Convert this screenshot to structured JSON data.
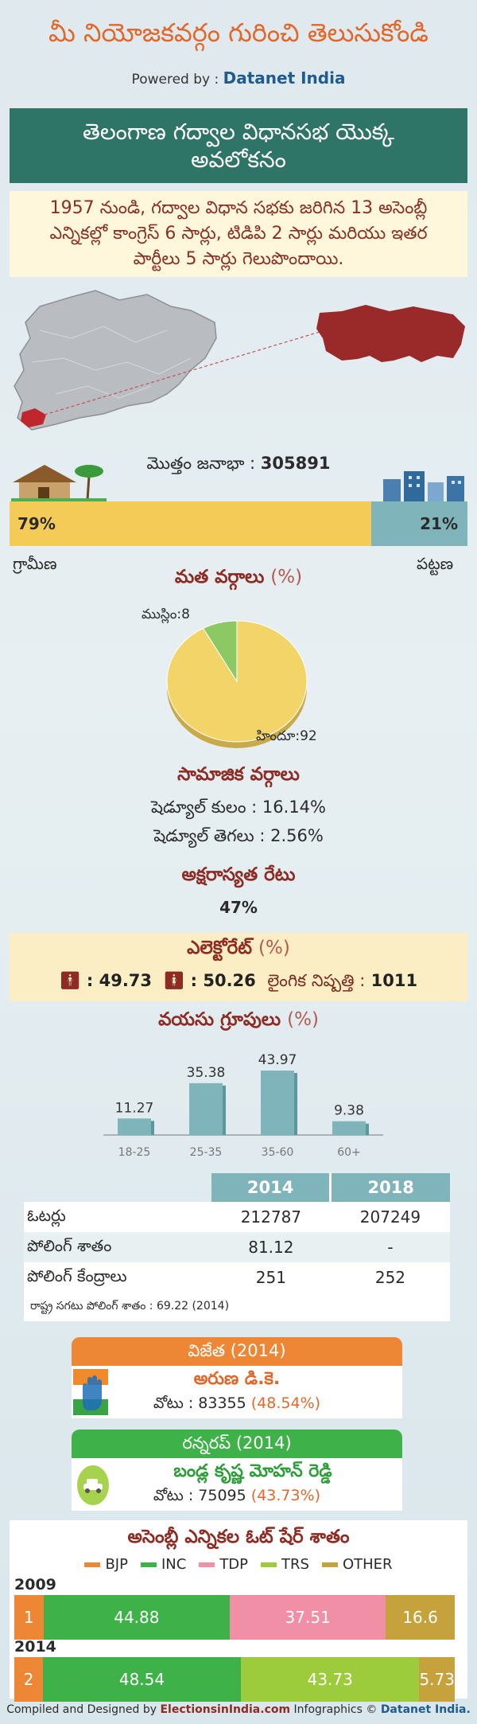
{
  "header": {
    "title": "మీ నియోజకవర్గం గురించి తెలుసుకోండి",
    "powered_prefix": "Powered by :",
    "powered_brand": "Datanet India"
  },
  "banner": {
    "title": "తెలంగాణ గద్వాల విధానసభ యొక్క అవలోకనం"
  },
  "summary": {
    "text": "1957 నుండి, గద్వాల విధాన సభకు జరిగిన 13 అసెంబ్లీ ఎన్నికల్లో కాంగ్రెస్ 6 సార్లు, టిడిపి 2 సార్లు మరియు ఇతర పార్టీలు 5 సార్లు గెలుపొందాయి."
  },
  "population": {
    "label": "మొత్తం జనాభా :",
    "total": "305891",
    "rural_pct": "79%",
    "urban_pct": "21%",
    "rural_share": 79,
    "urban_share": 21,
    "rural_word": "గ్రామీణ",
    "urban_word": "పట్టణ",
    "colors": {
      "rural": "#f5cb57",
      "urban": "#7fb4bb"
    }
  },
  "religion": {
    "title": "మత వర్గాలు",
    "title_pct": "(%)",
    "muslim_label": "ముస్లిం:8",
    "hindu_label": "హిందూ:92",
    "colors": {
      "hindu": "#f2d469",
      "muslim": "#8cc863"
    }
  },
  "chart_data": [
    {
      "type": "pie",
      "title": "మత వర్గాలు (%)",
      "categories": [
        "హిందూ",
        "ముస్లిం"
      ],
      "values": [
        92,
        8
      ]
    },
    {
      "type": "bar",
      "title": "వయసు గ్రూపులు (%)",
      "categories": [
        "18-25",
        "25-35",
        "35-60",
        "60+"
      ],
      "values": [
        11.27,
        35.38,
        43.97,
        9.38
      ]
    },
    {
      "type": "bar",
      "title": "అసెంబ్లీ ఎన్నికల ఓట్ షేర్ శాతం",
      "categories": [
        "2009",
        "2014"
      ],
      "series": [
        {
          "name": "BJP",
          "values": [
            1,
            2
          ]
        },
        {
          "name": "INC",
          "values": [
            44.88,
            48.54
          ]
        },
        {
          "name": "TDP",
          "values": [
            37.51,
            0
          ]
        },
        {
          "name": "TRS",
          "values": [
            0,
            43.73
          ]
        },
        {
          "name": "OTHER",
          "values": [
            16.6,
            5.73
          ]
        }
      ]
    }
  ],
  "social": {
    "title": "సామాజిక వర్గాలు",
    "sc_label": "షెడ్యూల్ కులం :",
    "sc_value": "16.14%",
    "st_label": "షెడ్యూల్ తెగలు :",
    "st_value": "2.56%"
  },
  "literacy": {
    "title": "అక్షరాస్యత రేటు",
    "value": "47%"
  },
  "electorate": {
    "title": "ఎలెక్టోరేట్",
    "title_pct": "(%)",
    "male": ": 49.73",
    "female": ": 50.26",
    "ratio_label": "లైంగిక నిష్పత్తి :",
    "ratio_value": "1011"
  },
  "age": {
    "title": "వయసు గ్రూపులు",
    "title_pct": "(%)",
    "groups": [
      "18-25",
      "25-35",
      "35-60",
      "60+"
    ],
    "values": [
      11.27,
      35.38,
      43.97,
      9.38
    ],
    "value_labels": [
      "11.27",
      "35.38",
      "43.97",
      "9.38"
    ],
    "color": "#7fb4bb"
  },
  "table": {
    "headers": [
      "2014",
      "2018"
    ],
    "rows": [
      {
        "label": "ఓటర్లు",
        "v2014": "212787",
        "v2018": "207249"
      },
      {
        "label": "పోలింగ్ శాతం",
        "v2014": "81.12",
        "v2018": "-"
      },
      {
        "label": "పోలింగ్ కేంద్రాలు",
        "v2014": "251",
        "v2018": "252"
      }
    ],
    "note": "రాష్ట్ర సగటు పోలింగ్ శాతం : 69.22 (2014)"
  },
  "winner": {
    "head": "విజేత",
    "year": "(2014)",
    "name": "అరుణ డి.కె.",
    "votes_label": "వోటు : 83355",
    "votes_pct": "(48.54%)"
  },
  "runnerup": {
    "head": "రన్నరప్",
    "year": "(2014)",
    "name": "బండ్ల కృష్ణ మోహన్ రెడ్డి",
    "votes_label": "వోటు : 75095",
    "votes_pct": "(43.73%)"
  },
  "vote_share": {
    "title": "అసెంబ్లీ ఎన్నికల ఓట్ షేర్ శాతం",
    "legend": [
      {
        "name": "BJP",
        "color": "#ee8735"
      },
      {
        "name": "INC",
        "color": "#3eb249"
      },
      {
        "name": "TDP",
        "color": "#f08fa6"
      },
      {
        "name": "TRS",
        "color": "#9ccb3b"
      },
      {
        "name": "OTHER",
        "color": "#c6a23d"
      }
    ],
    "years": [
      "2009",
      "2014"
    ],
    "bars": [
      [
        {
          "label": "1",
          "value": 1,
          "color": "#ee8735"
        },
        {
          "label": "44.88",
          "value": 44.88,
          "color": "#3eb249"
        },
        {
          "label": "37.51",
          "value": 37.51,
          "color": "#f08fa6"
        },
        {
          "label": "16.6",
          "value": 16.6,
          "color": "#c6a23d"
        }
      ],
      [
        {
          "label": "2",
          "value": 2,
          "color": "#ee8735"
        },
        {
          "label": "48.54",
          "value": 48.54,
          "color": "#3eb249"
        },
        {
          "label": "43.73",
          "value": 43.73,
          "color": "#9ccb3b"
        },
        {
          "label": "5.73",
          "value": 5.73,
          "color": "#c6a23d"
        }
      ]
    ]
  },
  "footer": {
    "prefix": "Compiled and Designed by",
    "ei": "ElectionsinIndia.com",
    "mid": "Infographics ©",
    "dn": "Datanet India."
  }
}
